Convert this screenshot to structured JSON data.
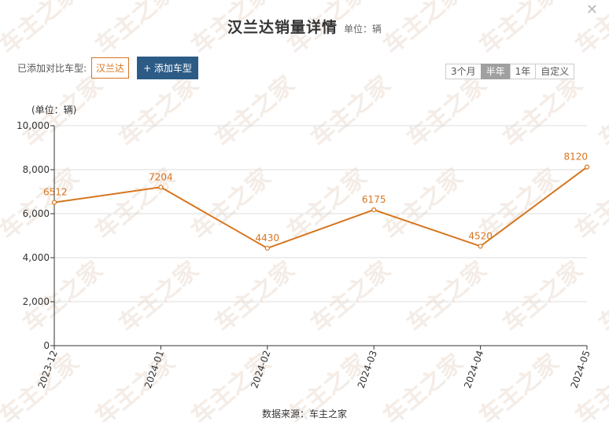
{
  "header": {
    "title": "汉兰达销量详情",
    "unit": "单位：辆",
    "close_icon": "close-icon"
  },
  "compare": {
    "label": "已添加对比车型:",
    "chip": "汉兰达",
    "add_button": "+ 添加车型"
  },
  "range": {
    "options": [
      "3个月",
      "半年",
      "1年",
      "自定义"
    ],
    "active": "半年"
  },
  "footer": {
    "source": "数据来源：车主之家"
  },
  "watermark": {
    "text": "车主之家"
  },
  "colors": {
    "line": "#d7751e",
    "grid": "#dddddd",
    "axis": "#333333",
    "label": "#d7751e"
  },
  "chart_data": {
    "type": "line",
    "title": "汉兰达销量详情",
    "ylabel": "(单位：辆)",
    "xlabel": "",
    "categories": [
      "2023-12",
      "2024-01",
      "2024-02",
      "2024-03",
      "2024-04",
      "2024-05"
    ],
    "series": [
      {
        "values": [
          6512,
          7204,
          4430,
          6175,
          4520,
          8120
        ]
      }
    ],
    "ylim": [
      0,
      10000
    ],
    "yticks": [
      "0",
      "2,000",
      "4,000",
      "6,000",
      "8,000",
      "10,000"
    ],
    "grid": true,
    "data_labels": true
  }
}
